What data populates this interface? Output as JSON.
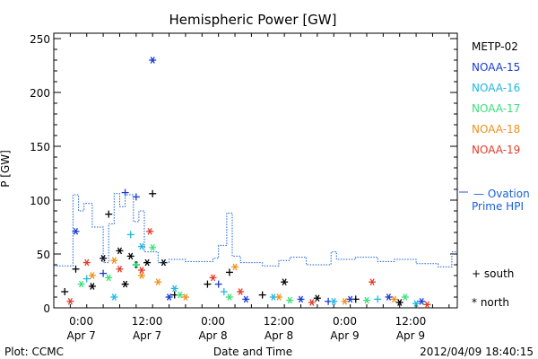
{
  "footer": {
    "left": "Plot: CCMC",
    "right": "2012/04/09 18:40:15"
  },
  "chart_data": {
    "type": "scatter",
    "title": "Hemispheric Power [GW]",
    "xlabel": "Date and Time",
    "ylabel": "P [GW]",
    "ylim": [
      0,
      255
    ],
    "xlim": [
      "2012-04-06 19:00",
      "2012-04-09 20:30"
    ],
    "y_ticks": [
      0,
      50,
      100,
      150,
      200,
      250
    ],
    "x_ticks": [
      {
        "x": "2012-04-07 00:00",
        "time": "0:00",
        "date": "Apr 7"
      },
      {
        "x": "2012-04-07 12:00",
        "time": "12:00",
        "date": "Apr 7"
      },
      {
        "x": "2012-04-08 00:00",
        "time": "0:00",
        "date": "Apr 8"
      },
      {
        "x": "2012-04-08 12:00",
        "time": "12:00",
        "date": "Apr 8"
      },
      {
        "x": "2012-04-09 00:00",
        "time": "0:00",
        "date": "Apr 9"
      },
      {
        "x": "2012-04-09 12:00",
        "time": "12:00",
        "date": "Apr 9"
      }
    ],
    "grid": false,
    "legend_position": "right",
    "marker_legend": [
      {
        "symbol": "+",
        "label": "south"
      },
      {
        "symbol": "*",
        "label": "north"
      }
    ],
    "series": [
      {
        "name": "METP-02",
        "color": "#000000",
        "points": [
          {
            "x": "2012-04-06 21:00",
            "y": 15,
            "m": "+"
          },
          {
            "x": "2012-04-06 23:00",
            "y": 36,
            "m": "+"
          },
          {
            "x": "2012-04-07 02:00",
            "y": 20,
            "m": "*"
          },
          {
            "x": "2012-04-07 04:00",
            "y": 46,
            "m": "*"
          },
          {
            "x": "2012-04-07 05:00",
            "y": 87,
            "m": "+"
          },
          {
            "x": "2012-04-07 07:00",
            "y": 53,
            "m": "*"
          },
          {
            "x": "2012-04-07 08:00",
            "y": 22,
            "m": "*"
          },
          {
            "x": "2012-04-07 09:00",
            "y": 48,
            "m": "*"
          },
          {
            "x": "2012-04-07 10:00",
            "y": 40,
            "m": "+"
          },
          {
            "x": "2012-04-07 12:00",
            "y": 42,
            "m": "*"
          },
          {
            "x": "2012-04-07 13:00",
            "y": 106,
            "m": "+"
          },
          {
            "x": "2012-04-07 15:00",
            "y": 42,
            "m": "*"
          },
          {
            "x": "2012-04-07 17:00",
            "y": 12,
            "m": "+"
          },
          {
            "x": "2012-04-07 23:00",
            "y": 22,
            "m": "+"
          },
          {
            "x": "2012-04-08 03:00",
            "y": 33,
            "m": "+"
          },
          {
            "x": "2012-04-08 09:00",
            "y": 12,
            "m": "+"
          },
          {
            "x": "2012-04-08 13:00",
            "y": 24,
            "m": "*"
          },
          {
            "x": "2012-04-08 19:00",
            "y": 9,
            "m": "*"
          },
          {
            "x": "2012-04-09 02:00",
            "y": 8,
            "m": "+"
          },
          {
            "x": "2012-04-09 10:00",
            "y": 5,
            "m": "*"
          }
        ]
      },
      {
        "name": "NOAA-15",
        "color": "#1a3ad6",
        "points": [
          {
            "x": "2012-04-06 23:00",
            "y": 71,
            "m": "*"
          },
          {
            "x": "2012-04-07 04:00",
            "y": 32,
            "m": "+"
          },
          {
            "x": "2012-04-07 08:00",
            "y": 107,
            "m": "+"
          },
          {
            "x": "2012-04-07 10:00",
            "y": 103,
            "m": "+"
          },
          {
            "x": "2012-04-07 13:00",
            "y": 230,
            "m": "*"
          },
          {
            "x": "2012-04-07 16:00",
            "y": 10,
            "m": "*"
          },
          {
            "x": "2012-04-08 01:00",
            "y": 22,
            "m": "+"
          },
          {
            "x": "2012-04-08 06:00",
            "y": 8,
            "m": "*"
          },
          {
            "x": "2012-04-08 16:00",
            "y": 8,
            "m": "*"
          },
          {
            "x": "2012-04-08 21:00",
            "y": 6,
            "m": "+"
          },
          {
            "x": "2012-04-09 01:00",
            "y": 8,
            "m": "*"
          },
          {
            "x": "2012-04-09 08:00",
            "y": 10,
            "m": "*"
          },
          {
            "x": "2012-04-09 14:00",
            "y": 6,
            "m": "*"
          }
        ]
      },
      {
        "name": "NOAA-16",
        "color": "#1fb6e6",
        "points": [
          {
            "x": "2012-04-07 01:00",
            "y": 27,
            "m": "+"
          },
          {
            "x": "2012-04-07 06:00",
            "y": 10,
            "m": "*"
          },
          {
            "x": "2012-04-07 09:00",
            "y": 68,
            "m": "+"
          },
          {
            "x": "2012-04-07 11:00",
            "y": 57,
            "m": "*"
          },
          {
            "x": "2012-04-07 17:00",
            "y": 18,
            "m": "*"
          },
          {
            "x": "2012-04-08 02:00",
            "y": 15,
            "m": "+"
          },
          {
            "x": "2012-04-08 11:00",
            "y": 10,
            "m": "*"
          },
          {
            "x": "2012-04-08 22:00",
            "y": 6,
            "m": "*"
          },
          {
            "x": "2012-04-09 06:00",
            "y": 8,
            "m": "+"
          },
          {
            "x": "2012-04-09 13:00",
            "y": 4,
            "m": "*"
          }
        ]
      },
      {
        "name": "NOAA-17",
        "color": "#3ae07a",
        "points": [
          {
            "x": "2012-04-07 00:00",
            "y": 22,
            "m": "*"
          },
          {
            "x": "2012-04-07 05:00",
            "y": 28,
            "m": "*"
          },
          {
            "x": "2012-04-07 10:00",
            "y": 40,
            "m": "*"
          },
          {
            "x": "2012-04-07 13:00",
            "y": 56,
            "m": "*"
          },
          {
            "x": "2012-04-07 18:00",
            "y": 12,
            "m": "*"
          },
          {
            "x": "2012-04-08 03:00",
            "y": 10,
            "m": "*"
          },
          {
            "x": "2012-04-08 14:00",
            "y": 7,
            "m": "*"
          },
          {
            "x": "2012-04-09 04:00",
            "y": 7,
            "m": "*"
          },
          {
            "x": "2012-04-09 11:00",
            "y": 10,
            "m": "*"
          }
        ]
      },
      {
        "name": "NOAA-18",
        "color": "#f0901c",
        "points": [
          {
            "x": "2012-04-07 02:00",
            "y": 30,
            "m": "*"
          },
          {
            "x": "2012-04-07 06:00",
            "y": 44,
            "m": "*"
          },
          {
            "x": "2012-04-07 11:00",
            "y": 30,
            "m": "*"
          },
          {
            "x": "2012-04-07 14:00",
            "y": 24,
            "m": "*"
          },
          {
            "x": "2012-04-07 19:00",
            "y": 10,
            "m": "*"
          },
          {
            "x": "2012-04-08 04:00",
            "y": 38,
            "m": "*"
          },
          {
            "x": "2012-04-08 12:00",
            "y": 10,
            "m": "*"
          },
          {
            "x": "2012-04-09 00:00",
            "y": 6,
            "m": "*"
          },
          {
            "x": "2012-04-09 09:00",
            "y": 8,
            "m": "*"
          }
        ]
      },
      {
        "name": "NOAA-19",
        "color": "#e33b2b",
        "points": [
          {
            "x": "2012-04-06 22:00",
            "y": 6,
            "m": "*"
          },
          {
            "x": "2012-04-07 01:00",
            "y": 42,
            "m": "*"
          },
          {
            "x": "2012-04-07 07:00",
            "y": 36,
            "m": "*"
          },
          {
            "x": "2012-04-07 11:00",
            "y": 35,
            "m": "*"
          },
          {
            "x": "2012-04-07 12:30",
            "y": 71,
            "m": "*"
          },
          {
            "x": "2012-04-08 00:00",
            "y": 28,
            "m": "*"
          },
          {
            "x": "2012-04-08 05:00",
            "y": 15,
            "m": "*"
          },
          {
            "x": "2012-04-08 18:00",
            "y": 5,
            "m": "*"
          },
          {
            "x": "2012-04-09 05:00",
            "y": 24,
            "m": "*"
          },
          {
            "x": "2012-04-09 15:00",
            "y": 3,
            "m": "*"
          }
        ]
      },
      {
        "name": "— Ovation Prime HPI",
        "color": "#1a5fd6",
        "kind": "line",
        "dashed": true,
        "points": [
          {
            "x": "2012-04-06 19:00",
            "y": 39
          },
          {
            "x": "2012-04-06 22:30",
            "y": 39
          },
          {
            "x": "2012-04-06 22:30",
            "y": 105
          },
          {
            "x": "2012-04-06 23:30",
            "y": 105
          },
          {
            "x": "2012-04-06 23:30",
            "y": 90
          },
          {
            "x": "2012-04-07 00:30",
            "y": 90
          },
          {
            "x": "2012-04-07 00:30",
            "y": 97
          },
          {
            "x": "2012-04-07 02:00",
            "y": 97
          },
          {
            "x": "2012-04-07 02:00",
            "y": 75
          },
          {
            "x": "2012-04-07 04:00",
            "y": 75
          },
          {
            "x": "2012-04-07 04:00",
            "y": 42
          },
          {
            "x": "2012-04-07 05:00",
            "y": 42
          },
          {
            "x": "2012-04-07 05:00",
            "y": 78
          },
          {
            "x": "2012-04-07 06:00",
            "y": 78
          },
          {
            "x": "2012-04-07 06:00",
            "y": 106
          },
          {
            "x": "2012-04-07 07:00",
            "y": 106
          },
          {
            "x": "2012-04-07 07:00",
            "y": 94
          },
          {
            "x": "2012-04-07 08:00",
            "y": 94
          },
          {
            "x": "2012-04-07 08:00",
            "y": 105
          },
          {
            "x": "2012-04-07 09:30",
            "y": 105
          },
          {
            "x": "2012-04-07 09:30",
            "y": 80
          },
          {
            "x": "2012-04-07 10:30",
            "y": 80
          },
          {
            "x": "2012-04-07 10:30",
            "y": 90
          },
          {
            "x": "2012-04-07 11:30",
            "y": 90
          },
          {
            "x": "2012-04-07 11:30",
            "y": 52
          },
          {
            "x": "2012-04-07 14:00",
            "y": 52
          },
          {
            "x": "2012-04-07 14:00",
            "y": 42
          },
          {
            "x": "2012-04-07 16:00",
            "y": 42
          },
          {
            "x": "2012-04-07 16:00",
            "y": 45
          },
          {
            "x": "2012-04-07 19:00",
            "y": 45
          },
          {
            "x": "2012-04-07 19:00",
            "y": 43
          },
          {
            "x": "2012-04-08 00:00",
            "y": 43
          },
          {
            "x": "2012-04-08 00:00",
            "y": 46
          },
          {
            "x": "2012-04-08 01:00",
            "y": 46
          },
          {
            "x": "2012-04-08 01:00",
            "y": 58
          },
          {
            "x": "2012-04-08 02:30",
            "y": 58
          },
          {
            "x": "2012-04-08 02:30",
            "y": 88
          },
          {
            "x": "2012-04-08 03:30",
            "y": 88
          },
          {
            "x": "2012-04-08 03:30",
            "y": 48
          },
          {
            "x": "2012-04-08 05:00",
            "y": 48
          },
          {
            "x": "2012-04-08 05:00",
            "y": 42
          },
          {
            "x": "2012-04-08 09:00",
            "y": 42
          },
          {
            "x": "2012-04-08 09:00",
            "y": 39
          },
          {
            "x": "2012-04-08 12:00",
            "y": 39
          },
          {
            "x": "2012-04-08 12:00",
            "y": 44
          },
          {
            "x": "2012-04-08 14:00",
            "y": 44
          },
          {
            "x": "2012-04-08 14:00",
            "y": 47
          },
          {
            "x": "2012-04-08 17:00",
            "y": 47
          },
          {
            "x": "2012-04-08 17:00",
            "y": 40
          },
          {
            "x": "2012-04-08 21:30",
            "y": 40
          },
          {
            "x": "2012-04-08 21:30",
            "y": 52
          },
          {
            "x": "2012-04-08 22:30",
            "y": 52
          },
          {
            "x": "2012-04-08 22:30",
            "y": 45
          },
          {
            "x": "2012-04-09 02:00",
            "y": 45
          },
          {
            "x": "2012-04-09 02:00",
            "y": 47
          },
          {
            "x": "2012-04-09 06:00",
            "y": 47
          },
          {
            "x": "2012-04-09 06:00",
            "y": 43
          },
          {
            "x": "2012-04-09 09:00",
            "y": 43
          },
          {
            "x": "2012-04-09 09:00",
            "y": 45
          },
          {
            "x": "2012-04-09 13:00",
            "y": 45
          },
          {
            "x": "2012-04-09 13:00",
            "y": 41
          },
          {
            "x": "2012-04-09 17:00",
            "y": 41
          },
          {
            "x": "2012-04-09 17:00",
            "y": 38
          },
          {
            "x": "2012-04-09 19:30",
            "y": 38
          },
          {
            "x": "2012-04-09 19:30",
            "y": 52
          },
          {
            "x": "2012-04-09 20:30",
            "y": 52
          }
        ]
      }
    ]
  }
}
